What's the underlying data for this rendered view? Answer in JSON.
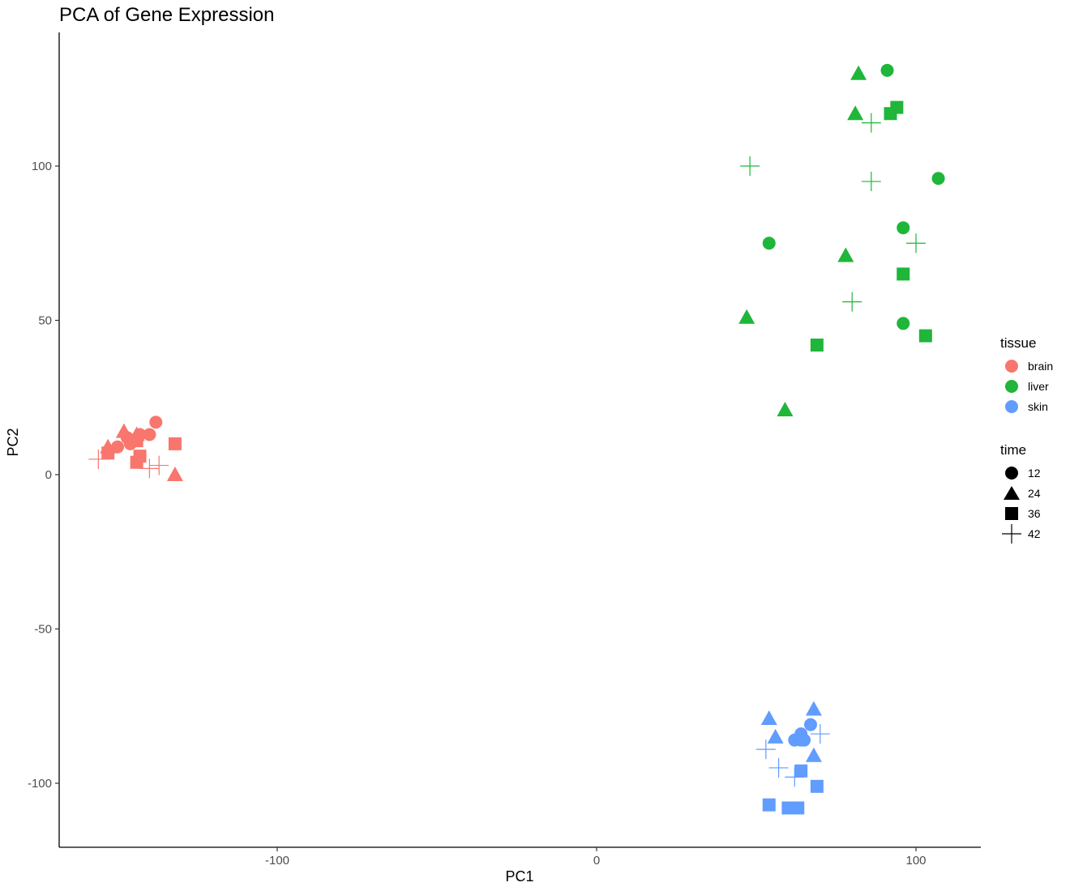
{
  "chart_data": {
    "type": "scatter",
    "title": "PCA of Gene Expression",
    "xlabel": "PC1",
    "ylabel": "PC2",
    "xlim": [
      -168,
      120
    ],
    "ylim": [
      -120,
      143
    ],
    "x_ticks": [
      -100,
      0,
      100
    ],
    "y_ticks": [
      -100,
      -50,
      0,
      50,
      100
    ],
    "x_tick_labels": [
      "-100",
      "0",
      "100"
    ],
    "y_tick_labels": [
      "-100",
      "-50",
      "0",
      "50",
      "100"
    ],
    "grid": false,
    "legend": [
      {
        "title": "tissue",
        "entries": [
          {
            "label": "brain",
            "color": "#f8766d"
          },
          {
            "label": "liver",
            "color": "#1fb63a"
          },
          {
            "label": "skin",
            "color": "#619cff"
          }
        ]
      },
      {
        "title": "time",
        "entries": [
          {
            "label": "12",
            "shape": "circle"
          },
          {
            "label": "24",
            "shape": "triangle"
          },
          {
            "label": "36",
            "shape": "square"
          },
          {
            "label": "42",
            "shape": "plus"
          }
        ]
      }
    ],
    "legend_position": "right",
    "series": [
      {
        "tissue": "brain",
        "color": "#f8766d",
        "points": [
          {
            "x": -138,
            "y": 17,
            "time": "12"
          },
          {
            "x": -147,
            "y": 12,
            "time": "12"
          },
          {
            "x": -140,
            "y": 13,
            "time": "12"
          },
          {
            "x": -143,
            "y": 13,
            "time": "12"
          },
          {
            "x": -150,
            "y": 9,
            "time": "12"
          },
          {
            "x": -146,
            "y": 10,
            "time": "12"
          },
          {
            "x": -148,
            "y": 14,
            "time": "24"
          },
          {
            "x": -144,
            "y": 13,
            "time": "24"
          },
          {
            "x": -153,
            "y": 9,
            "time": "24"
          },
          {
            "x": -132,
            "y": 0,
            "time": "24"
          },
          {
            "x": -132,
            "y": 10,
            "time": "36"
          },
          {
            "x": -144,
            "y": 11,
            "time": "36"
          },
          {
            "x": -143,
            "y": 6,
            "time": "36"
          },
          {
            "x": -144,
            "y": 4,
            "time": "36"
          },
          {
            "x": -153,
            "y": 7,
            "time": "36"
          },
          {
            "x": -156,
            "y": 5,
            "time": "42"
          },
          {
            "x": -140,
            "y": 2,
            "time": "42"
          },
          {
            "x": -137,
            "y": 3,
            "time": "42"
          }
        ]
      },
      {
        "tissue": "liver",
        "color": "#1fb63a",
        "points": [
          {
            "x": 91,
            "y": 131,
            "time": "12"
          },
          {
            "x": 107,
            "y": 96,
            "time": "12"
          },
          {
            "x": 96,
            "y": 80,
            "time": "12"
          },
          {
            "x": 54,
            "y": 75,
            "time": "12"
          },
          {
            "x": 96,
            "y": 49,
            "time": "12"
          },
          {
            "x": 82,
            "y": 130,
            "time": "24"
          },
          {
            "x": 81,
            "y": 117,
            "time": "24"
          },
          {
            "x": 78,
            "y": 71,
            "time": "24"
          },
          {
            "x": 47,
            "y": 51,
            "time": "24"
          },
          {
            "x": 59,
            "y": 21,
            "time": "24"
          },
          {
            "x": 94,
            "y": 119,
            "time": "36"
          },
          {
            "x": 92,
            "y": 117,
            "time": "36"
          },
          {
            "x": 96,
            "y": 65,
            "time": "36"
          },
          {
            "x": 103,
            "y": 45,
            "time": "36"
          },
          {
            "x": 69,
            "y": 42,
            "time": "36"
          },
          {
            "x": 48,
            "y": 100,
            "time": "42"
          },
          {
            "x": 86,
            "y": 114,
            "time": "42"
          },
          {
            "x": 86,
            "y": 95,
            "time": "42"
          },
          {
            "x": 100,
            "y": 75,
            "time": "42"
          },
          {
            "x": 80,
            "y": 56,
            "time": "42"
          }
        ]
      },
      {
        "tissue": "skin",
        "color": "#619cff",
        "points": [
          {
            "x": 67,
            "y": -81,
            "time": "12"
          },
          {
            "x": 64,
            "y": -84,
            "time": "12"
          },
          {
            "x": 64,
            "y": -86,
            "time": "12"
          },
          {
            "x": 62,
            "y": -86,
            "time": "12"
          },
          {
            "x": 65,
            "y": -86,
            "time": "12"
          },
          {
            "x": 68,
            "y": -76,
            "time": "24"
          },
          {
            "x": 54,
            "y": -79,
            "time": "24"
          },
          {
            "x": 56,
            "y": -85,
            "time": "24"
          },
          {
            "x": 68,
            "y": -91,
            "time": "24"
          },
          {
            "x": 64,
            "y": -96,
            "time": "36"
          },
          {
            "x": 69,
            "y": -101,
            "time": "36"
          },
          {
            "x": 54,
            "y": -107,
            "time": "36"
          },
          {
            "x": 60,
            "y": -108,
            "time": "36"
          },
          {
            "x": 63,
            "y": -108,
            "time": "36"
          },
          {
            "x": 70,
            "y": -84,
            "time": "42"
          },
          {
            "x": 53,
            "y": -89,
            "time": "42"
          },
          {
            "x": 57,
            "y": -95,
            "time": "42"
          },
          {
            "x": 62,
            "y": -98,
            "time": "42"
          }
        ]
      }
    ]
  }
}
